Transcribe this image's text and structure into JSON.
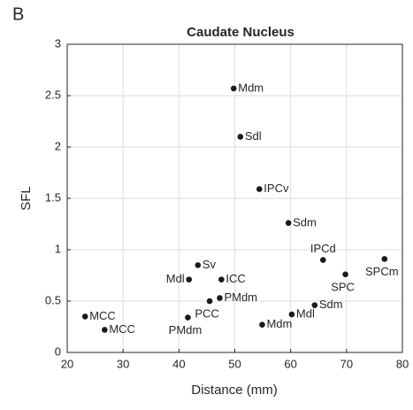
{
  "panel_label": "B",
  "chart_data": {
    "type": "scatter",
    "title": "Caudate Nucleus",
    "x_label": "Distance (mm)",
    "y_label": "SFL",
    "x": [
      49.8,
      51.0,
      54.4,
      59.6,
      65.8,
      76.8,
      69.8,
      43.4,
      41.8,
      47.6,
      47.3,
      45.5,
      41.6,
      23.2,
      26.7,
      54.9,
      60.2,
      64.3
    ],
    "values": [
      2.57,
      2.1,
      1.59,
      1.26,
      0.9,
      0.91,
      0.76,
      0.85,
      0.71,
      0.71,
      0.53,
      0.5,
      0.34,
      0.35,
      0.22,
      0.27,
      0.37,
      0.46
    ],
    "point_labels": [
      "Mdm",
      "Sdl",
      "IPCv",
      "Sdm",
      "IPCd",
      "SPCm",
      "SPC",
      "Sv",
      "Mdl",
      "ICC",
      "PMdm",
      "PCC",
      "PMdm",
      "MCC",
      "MCC",
      "Mdm",
      "Mdl",
      "Sdm"
    ],
    "color": "#1a1a1a",
    "xlim": [
      20,
      80
    ],
    "xticks": [
      20,
      30,
      40,
      50,
      60,
      70,
      80
    ],
    "ylim": [
      0,
      3
    ],
    "yticks": [
      0,
      0.5,
      1,
      1.5,
      2,
      2.5,
      3
    ],
    "grid": true
  }
}
